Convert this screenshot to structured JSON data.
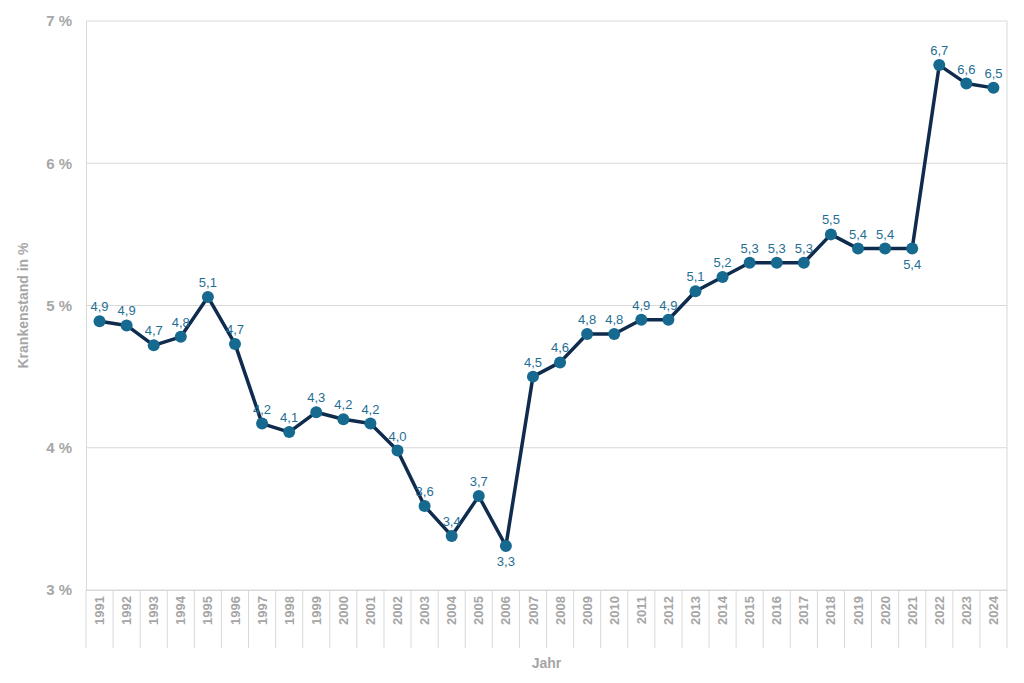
{
  "chart_data": {
    "type": "line",
    "x_label": "Jahr",
    "y_label": "Krankenstand in %",
    "categories": [
      "1991",
      "1992",
      "1993",
      "1994",
      "1995",
      "1996",
      "1997",
      "1998",
      "1999",
      "2000",
      "2001",
      "2002",
      "2003",
      "2004",
      "2005",
      "2006",
      "2007",
      "2008",
      "2009",
      "2010",
      "2011",
      "2012",
      "2013",
      "2014",
      "2015",
      "2016",
      "2017",
      "2018",
      "2019",
      "2020",
      "2021",
      "2022",
      "2023",
      "2024"
    ],
    "values": [
      4.89,
      4.86,
      4.72,
      4.78,
      5.06,
      4.73,
      4.17,
      4.11,
      4.25,
      4.2,
      4.17,
      3.98,
      3.59,
      3.38,
      3.66,
      3.31,
      4.5,
      4.6,
      4.8,
      4.8,
      4.9,
      4.9,
      5.1,
      5.2,
      5.3,
      5.3,
      5.3,
      5.5,
      5.4,
      5.4,
      5.4,
      6.69,
      6.56,
      6.53
    ],
    "value_labels": [
      "4,9",
      "4,9",
      "4,7",
      "4,8",
      "5,1",
      "4,7",
      "4,2",
      "4,1",
      "4,3",
      "4,2",
      "4,2",
      "4,0",
      "3,6",
      "3,4",
      "3,7",
      "3,3",
      "4,5",
      "4,6",
      "4,8",
      "4,8",
      "4,9",
      "4,9",
      "5,1",
      "5,2",
      "5,3",
      "5,3",
      "5,3",
      "5,5",
      "5,4",
      "5,4",
      "5,4",
      "6,7",
      "6,6",
      "6,5"
    ],
    "color": "#0f2b4e",
    "marker": "circle",
    "ylim": [
      3,
      7
    ],
    "yticks": [
      {
        "value": 3,
        "label": "3 %"
      },
      {
        "value": 4,
        "label": "4 %"
      },
      {
        "value": 5,
        "label": "5 %"
      },
      {
        "value": 6,
        "label": "6 %"
      },
      {
        "value": 7,
        "label": "7 %"
      }
    ],
    "grid": true,
    "data_labels": true
  }
}
